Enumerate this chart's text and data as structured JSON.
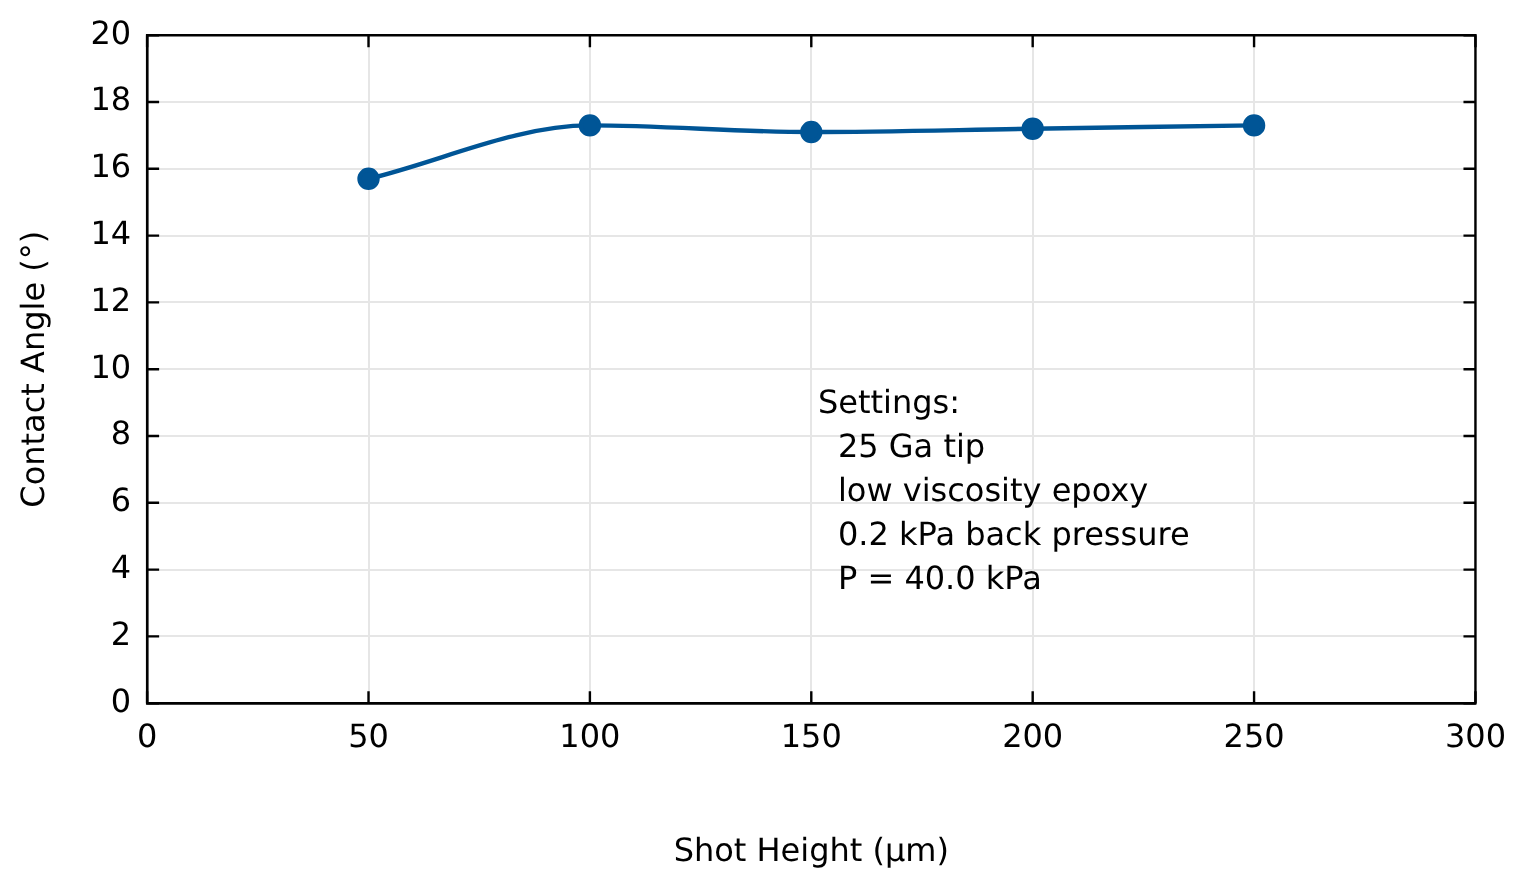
{
  "chart_data": {
    "type": "line",
    "xlabel": "Shot Height (µm)",
    "ylabel": "Contact Angle (°)",
    "x": [
      50,
      100,
      150,
      200,
      250
    ],
    "series": [
      {
        "color": "#005596",
        "values": [
          15.7,
          17.3,
          17.1,
          17.2,
          17.3
        ]
      }
    ],
    "xlim": [
      0,
      300
    ],
    "xticks": [
      0,
      50,
      100,
      150,
      200,
      250,
      300
    ],
    "ylim": [
      0,
      20
    ],
    "yticks": [
      0,
      2,
      4,
      6,
      8,
      10,
      12,
      14,
      16,
      18,
      20
    ],
    "grid": true,
    "legend": false,
    "marker": "circle",
    "line_style": "solid",
    "annotations": [
      "Settings:\n 25 Ga tip\n low viscosity epoxy\n 0.2 kPa back pressure\n P = 40.0 kPa"
    ]
  }
}
